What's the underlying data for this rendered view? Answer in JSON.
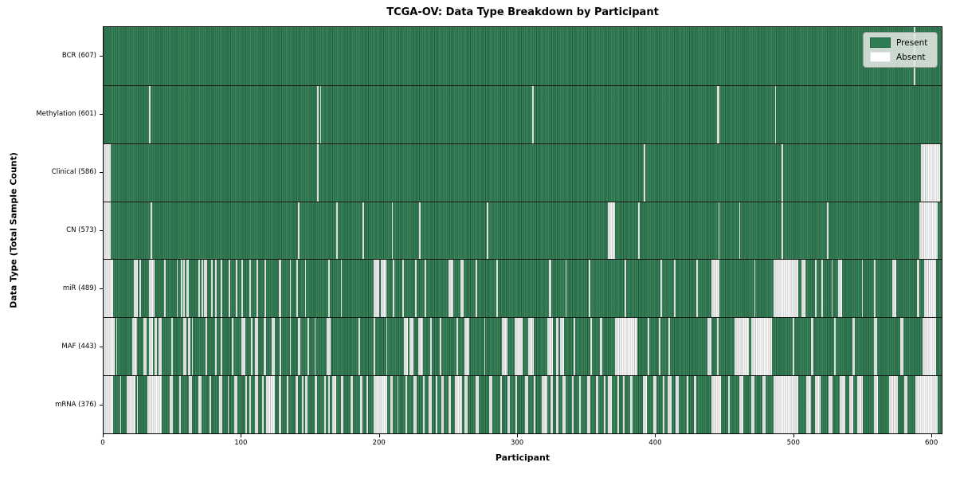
{
  "chart_data": {
    "type": "heatmap",
    "title": "TCGA-OV: Data Type Breakdown by Participant",
    "xlabel": "Participant",
    "ylabel": "Data Type (Total Sample Count)",
    "x_ticks": [
      0,
      100,
      200,
      300,
      400,
      500,
      600
    ],
    "xlim": [
      0,
      608
    ],
    "n_participants": 608,
    "legend_entries": [
      "Present",
      "Absent"
    ],
    "legend_position": "upper right",
    "colors": {
      "present": "#2e7d52",
      "present_grid": "#1e5838",
      "absent": "#fafafa",
      "row_separator": "#1a1a1a"
    },
    "absent_encoding": "absent_segments are [start,end) participant index ranges; all other participants are present (green)",
    "rows": [
      {
        "label": "BCR (607)",
        "data_type": "BCR",
        "present_count": 607,
        "absent_segments": [
          [
            588,
            589
          ]
        ]
      },
      {
        "label": "Methylation (601)",
        "data_type": "Methylation",
        "present_count": 601,
        "absent_segments": [
          [
            33,
            34
          ],
          [
            155,
            156
          ],
          [
            157,
            158
          ],
          [
            311,
            312
          ],
          [
            445,
            447
          ],
          [
            487,
            488
          ]
        ]
      },
      {
        "label": "Clinical (586)",
        "data_type": "Clinical",
        "present_count": 586,
        "absent_segments": [
          [
            0,
            5
          ],
          [
            155,
            156
          ],
          [
            392,
            393
          ],
          [
            492,
            493
          ],
          [
            593,
            607
          ]
        ]
      },
      {
        "label": "CN (573)",
        "data_type": "CN",
        "present_count": 573,
        "absent_segments": [
          [
            0,
            5
          ],
          [
            34,
            35
          ],
          [
            141,
            142
          ],
          [
            169,
            170
          ],
          [
            188,
            189
          ],
          [
            209,
            210
          ],
          [
            229,
            230
          ],
          [
            278,
            279
          ],
          [
            366,
            371
          ],
          [
            388,
            389
          ],
          [
            446,
            447
          ],
          [
            461,
            462
          ],
          [
            492,
            493
          ],
          [
            525,
            526
          ],
          [
            592,
            605
          ]
        ]
      },
      {
        "label": "miR (489)",
        "data_type": "miR",
        "present_count": 489,
        "absent_segments": [
          [
            0,
            7
          ],
          [
            22,
            25
          ],
          [
            26,
            27
          ],
          [
            33,
            37
          ],
          [
            44,
            45
          ],
          [
            53,
            54
          ],
          [
            56,
            57
          ],
          [
            58,
            59
          ],
          [
            60,
            62
          ],
          [
            69,
            70
          ],
          [
            71,
            72
          ],
          [
            73,
            75
          ],
          [
            78,
            79
          ],
          [
            81,
            82
          ],
          [
            85,
            86
          ],
          [
            91,
            92
          ],
          [
            96,
            97
          ],
          [
            100,
            101
          ],
          [
            106,
            107
          ],
          [
            111,
            112
          ],
          [
            117,
            118
          ],
          [
            127,
            129
          ],
          [
            135,
            136
          ],
          [
            140,
            141
          ],
          [
            146,
            147
          ],
          [
            163,
            164
          ],
          [
            172,
            173
          ],
          [
            196,
            200
          ],
          [
            201,
            205
          ],
          [
            210,
            211
          ],
          [
            217,
            218
          ],
          [
            226,
            227
          ],
          [
            233,
            234
          ],
          [
            250,
            254
          ],
          [
            259,
            261
          ],
          [
            270,
            271
          ],
          [
            285,
            286
          ],
          [
            323,
            325
          ],
          [
            335,
            336
          ],
          [
            352,
            353
          ],
          [
            378,
            379
          ],
          [
            404,
            405
          ],
          [
            414,
            415
          ],
          [
            430,
            431
          ],
          [
            441,
            447
          ],
          [
            472,
            473
          ],
          [
            486,
            504
          ],
          [
            506,
            509
          ],
          [
            516,
            517
          ],
          [
            521,
            522
          ],
          [
            528,
            529
          ],
          [
            533,
            536
          ],
          [
            550,
            551
          ],
          [
            559,
            560
          ],
          [
            572,
            575
          ],
          [
            590,
            592
          ],
          [
            595,
            604
          ]
        ]
      },
      {
        "label": "MAF (443)",
        "data_type": "MAF",
        "present_count": 443,
        "absent_segments": [
          [
            0,
            8
          ],
          [
            9,
            10
          ],
          [
            21,
            24
          ],
          [
            29,
            31
          ],
          [
            33,
            36
          ],
          [
            37,
            39
          ],
          [
            40,
            42
          ],
          [
            49,
            50
          ],
          [
            58,
            60
          ],
          [
            61,
            63
          ],
          [
            64,
            65
          ],
          [
            74,
            75
          ],
          [
            81,
            82
          ],
          [
            85,
            86
          ],
          [
            93,
            94
          ],
          [
            100,
            103
          ],
          [
            107,
            108
          ],
          [
            110,
            112
          ],
          [
            116,
            118
          ],
          [
            122,
            124
          ],
          [
            128,
            129
          ],
          [
            135,
            136
          ],
          [
            141,
            143
          ],
          [
            148,
            149
          ],
          [
            153,
            154
          ],
          [
            162,
            165
          ],
          [
            185,
            186
          ],
          [
            196,
            197
          ],
          [
            205,
            206
          ],
          [
            218,
            221
          ],
          [
            222,
            225
          ],
          [
            228,
            232
          ],
          [
            237,
            238
          ],
          [
            244,
            245
          ],
          [
            256,
            257
          ],
          [
            262,
            265
          ],
          [
            276,
            277
          ],
          [
            289,
            293
          ],
          [
            298,
            304
          ],
          [
            308,
            312
          ],
          [
            322,
            326
          ],
          [
            328,
            330
          ],
          [
            331,
            334
          ],
          [
            341,
            342
          ],
          [
            353,
            354
          ],
          [
            360,
            362
          ],
          [
            371,
            387
          ],
          [
            395,
            396
          ],
          [
            403,
            404
          ],
          [
            410,
            411
          ],
          [
            438,
            441
          ],
          [
            445,
            446
          ],
          [
            458,
            468
          ],
          [
            470,
            485
          ],
          [
            500,
            501
          ],
          [
            513,
            515
          ],
          [
            530,
            531
          ],
          [
            543,
            545
          ],
          [
            559,
            561
          ],
          [
            578,
            580
          ],
          [
            594,
            604
          ]
        ]
      },
      {
        "label": "mRNA (376)",
        "data_type": "mRNA",
        "present_count": 376,
        "absent_segments": [
          [
            0,
            7
          ],
          [
            12,
            13
          ],
          [
            17,
            23
          ],
          [
            24,
            25
          ],
          [
            32,
            42
          ],
          [
            48,
            50
          ],
          [
            55,
            56
          ],
          [
            62,
            64
          ],
          [
            69,
            71
          ],
          [
            77,
            78
          ],
          [
            84,
            86
          ],
          [
            90,
            91
          ],
          [
            95,
            97
          ],
          [
            103,
            104
          ],
          [
            106,
            107
          ],
          [
            110,
            112
          ],
          [
            115,
            116
          ],
          [
            118,
            124
          ],
          [
            127,
            129
          ],
          [
            133,
            134
          ],
          [
            139,
            141
          ],
          [
            144,
            145
          ],
          [
            146,
            148
          ],
          [
            153,
            155
          ],
          [
            160,
            161
          ],
          [
            163,
            164
          ],
          [
            166,
            169
          ],
          [
            172,
            174
          ],
          [
            179,
            181
          ],
          [
            186,
            188
          ],
          [
            191,
            192
          ],
          [
            196,
            206
          ],
          [
            208,
            210
          ],
          [
            213,
            214
          ],
          [
            219,
            220
          ],
          [
            225,
            227
          ],
          [
            232,
            233
          ],
          [
            236,
            238
          ],
          [
            241,
            242
          ],
          [
            245,
            247
          ],
          [
            250,
            252
          ],
          [
            255,
            260
          ],
          [
            262,
            264
          ],
          [
            270,
            272
          ],
          [
            280,
            282
          ],
          [
            288,
            289
          ],
          [
            293,
            295
          ],
          [
            299,
            300
          ],
          [
            306,
            308
          ],
          [
            312,
            313
          ],
          [
            318,
            322
          ],
          [
            324,
            326
          ],
          [
            328,
            330
          ],
          [
            333,
            335
          ],
          [
            340,
            341
          ],
          [
            345,
            346
          ],
          [
            351,
            353
          ],
          [
            357,
            359
          ],
          [
            363,
            364
          ],
          [
            366,
            369
          ],
          [
            373,
            374
          ],
          [
            377,
            378
          ],
          [
            382,
            384
          ],
          [
            391,
            394
          ],
          [
            399,
            401
          ],
          [
            406,
            407
          ],
          [
            409,
            412
          ],
          [
            415,
            417
          ],
          [
            423,
            424
          ],
          [
            428,
            430
          ],
          [
            441,
            448
          ],
          [
            453,
            454
          ],
          [
            461,
            464
          ],
          [
            470,
            472
          ],
          [
            478,
            480
          ],
          [
            486,
            504
          ],
          [
            510,
            513
          ],
          [
            516,
            520
          ],
          [
            526,
            529
          ],
          [
            534,
            538
          ],
          [
            541,
            544
          ],
          [
            547,
            551
          ],
          [
            559,
            562
          ],
          [
            570,
            576
          ],
          [
            581,
            583
          ],
          [
            589,
            605
          ]
        ]
      }
    ]
  }
}
